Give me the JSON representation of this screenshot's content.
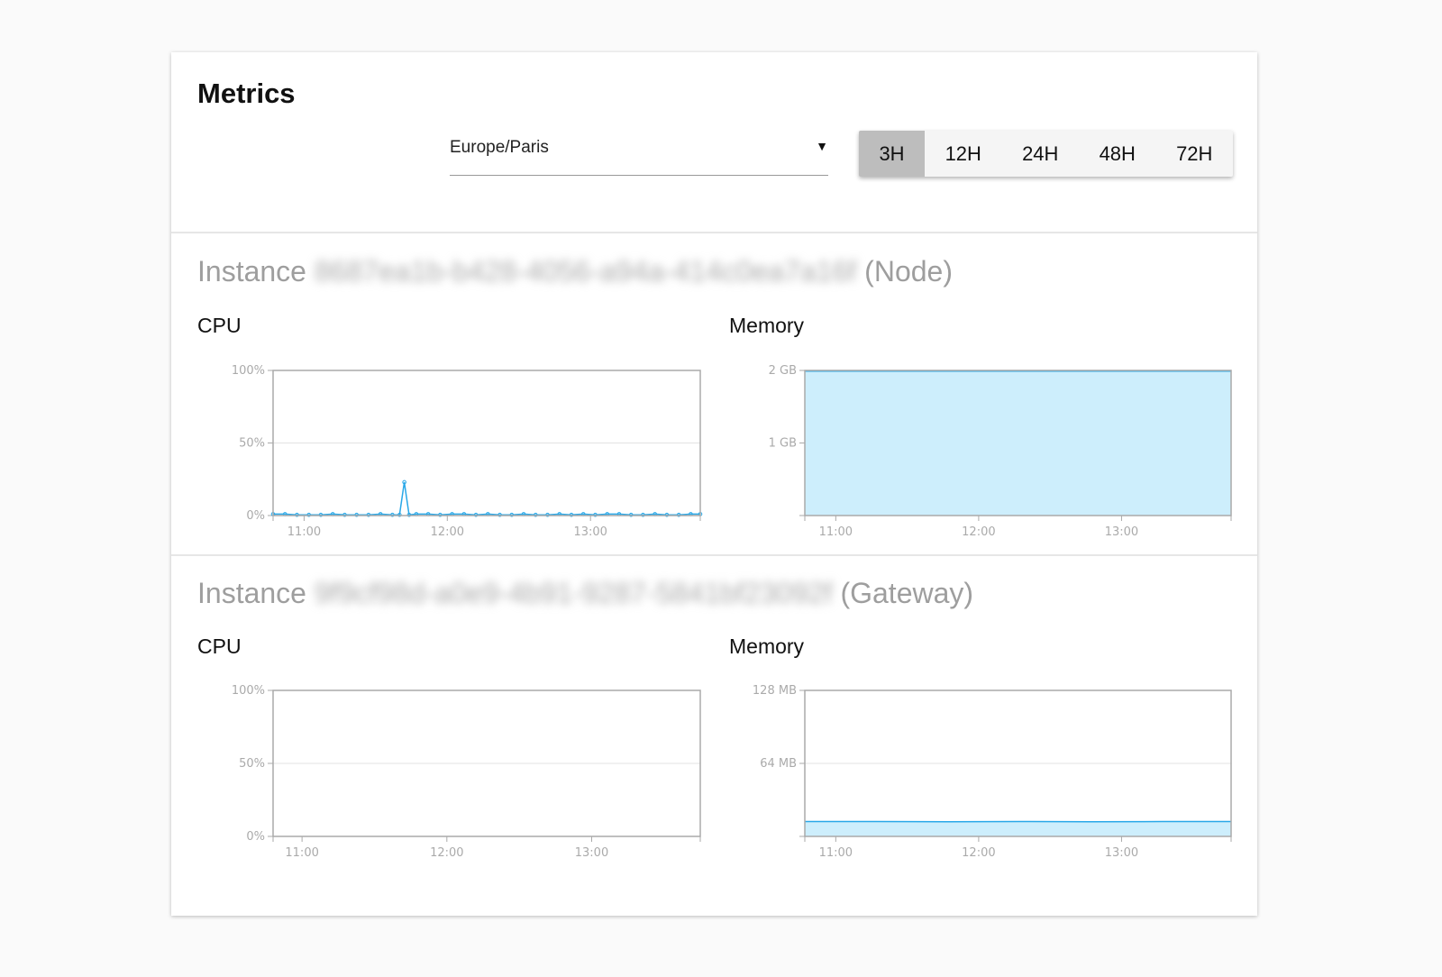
{
  "header": {
    "title": "Metrics"
  },
  "timezone": {
    "value": "Europe/Paris",
    "arrow": "▼"
  },
  "ranges": {
    "options": [
      "3H",
      "12H",
      "24H",
      "48H",
      "72H"
    ],
    "selected": "3H"
  },
  "instances": [
    {
      "prefix": "Instance",
      "id": "8687ea1b-b428-4056-a94a-414c0ea7a16f",
      "type": "(Node)",
      "cpu_label": "CPU",
      "memory_label": "Memory"
    },
    {
      "prefix": "Instance",
      "id": "9f9cf98d-a0e9-4b91-9287-5841bf23092f",
      "type": "(Gateway)",
      "cpu_label": "CPU",
      "memory_label": "Memory"
    }
  ],
  "colors": {
    "line": "#29a8e8",
    "fill": "#cdeefc",
    "axis": "#aaaaaa",
    "grid": "#e3e3e3",
    "active_range": "#bdbdbd"
  },
  "chart_data": [
    {
      "type": "line",
      "title": "CPU",
      "ylim": [
        0,
        100
      ],
      "yticks": [
        "0%",
        "50%",
        "100%"
      ],
      "ytick_values": [
        0,
        50,
        100
      ],
      "xlim": [
        "10:47",
        "13:46"
      ],
      "xticks": [
        "11:00",
        "12:00",
        "13:00"
      ],
      "grid": true,
      "x": [
        "10:47",
        "10:52",
        "10:57",
        "11:02",
        "11:07",
        "11:12",
        "11:17",
        "11:22",
        "11:27",
        "11:32",
        "11:37",
        "11:40",
        "11:42",
        "11:44",
        "11:47",
        "11:52",
        "11:57",
        "12:02",
        "12:07",
        "12:12",
        "12:17",
        "12:22",
        "12:27",
        "12:32",
        "12:37",
        "12:42",
        "12:47",
        "12:52",
        "12:57",
        "13:02",
        "13:07",
        "13:12",
        "13:17",
        "13:22",
        "13:27",
        "13:32",
        "13:37",
        "13:42",
        "13:46"
      ],
      "values": [
        1,
        1,
        0.5,
        0.5,
        0.5,
        1,
        0.5,
        0.5,
        0.5,
        1,
        0.5,
        0.5,
        23,
        0.5,
        1,
        1,
        0.5,
        1,
        1,
        0.5,
        1,
        0.5,
        0.5,
        1,
        0.5,
        0.5,
        1,
        0.5,
        1,
        0.5,
        1,
        1,
        0.5,
        0.5,
        1,
        0.5,
        0.5,
        1,
        1
      ]
    },
    {
      "type": "area",
      "title": "Memory",
      "ylim": [
        0,
        2
      ],
      "yticks": [
        "1 GB",
        "2 GB"
      ],
      "ytick_values": [
        1,
        2
      ],
      "xlim": [
        "10:47",
        "13:46"
      ],
      "xticks": [
        "11:00",
        "12:00",
        "13:00"
      ],
      "grid": true,
      "x": [
        "10:47",
        "13:46"
      ],
      "values": [
        1.99,
        1.99
      ]
    },
    {
      "type": "line",
      "title": "CPU",
      "ylim": [
        0,
        100
      ],
      "yticks": [
        "0%",
        "50%",
        "100%"
      ],
      "ytick_values": [
        0,
        50,
        100
      ],
      "xlim": [
        "10:48",
        "13:45"
      ],
      "xticks": [
        "11:00",
        "12:00",
        "13:00"
      ],
      "grid": true,
      "x": [],
      "values": []
    },
    {
      "type": "area",
      "title": "Memory",
      "ylim": [
        0,
        128
      ],
      "yticks": [
        "64 MB",
        "128 MB"
      ],
      "ytick_values": [
        64,
        128
      ],
      "xlim": [
        "10:47",
        "13:46"
      ],
      "xticks": [
        "11:00",
        "12:00",
        "13:00"
      ],
      "grid": true,
      "x": [
        "10:47",
        "11:17",
        "11:47",
        "12:17",
        "12:47",
        "13:17",
        "13:46"
      ],
      "values": [
        13,
        13,
        12.8,
        13,
        12.8,
        13,
        13
      ]
    }
  ]
}
